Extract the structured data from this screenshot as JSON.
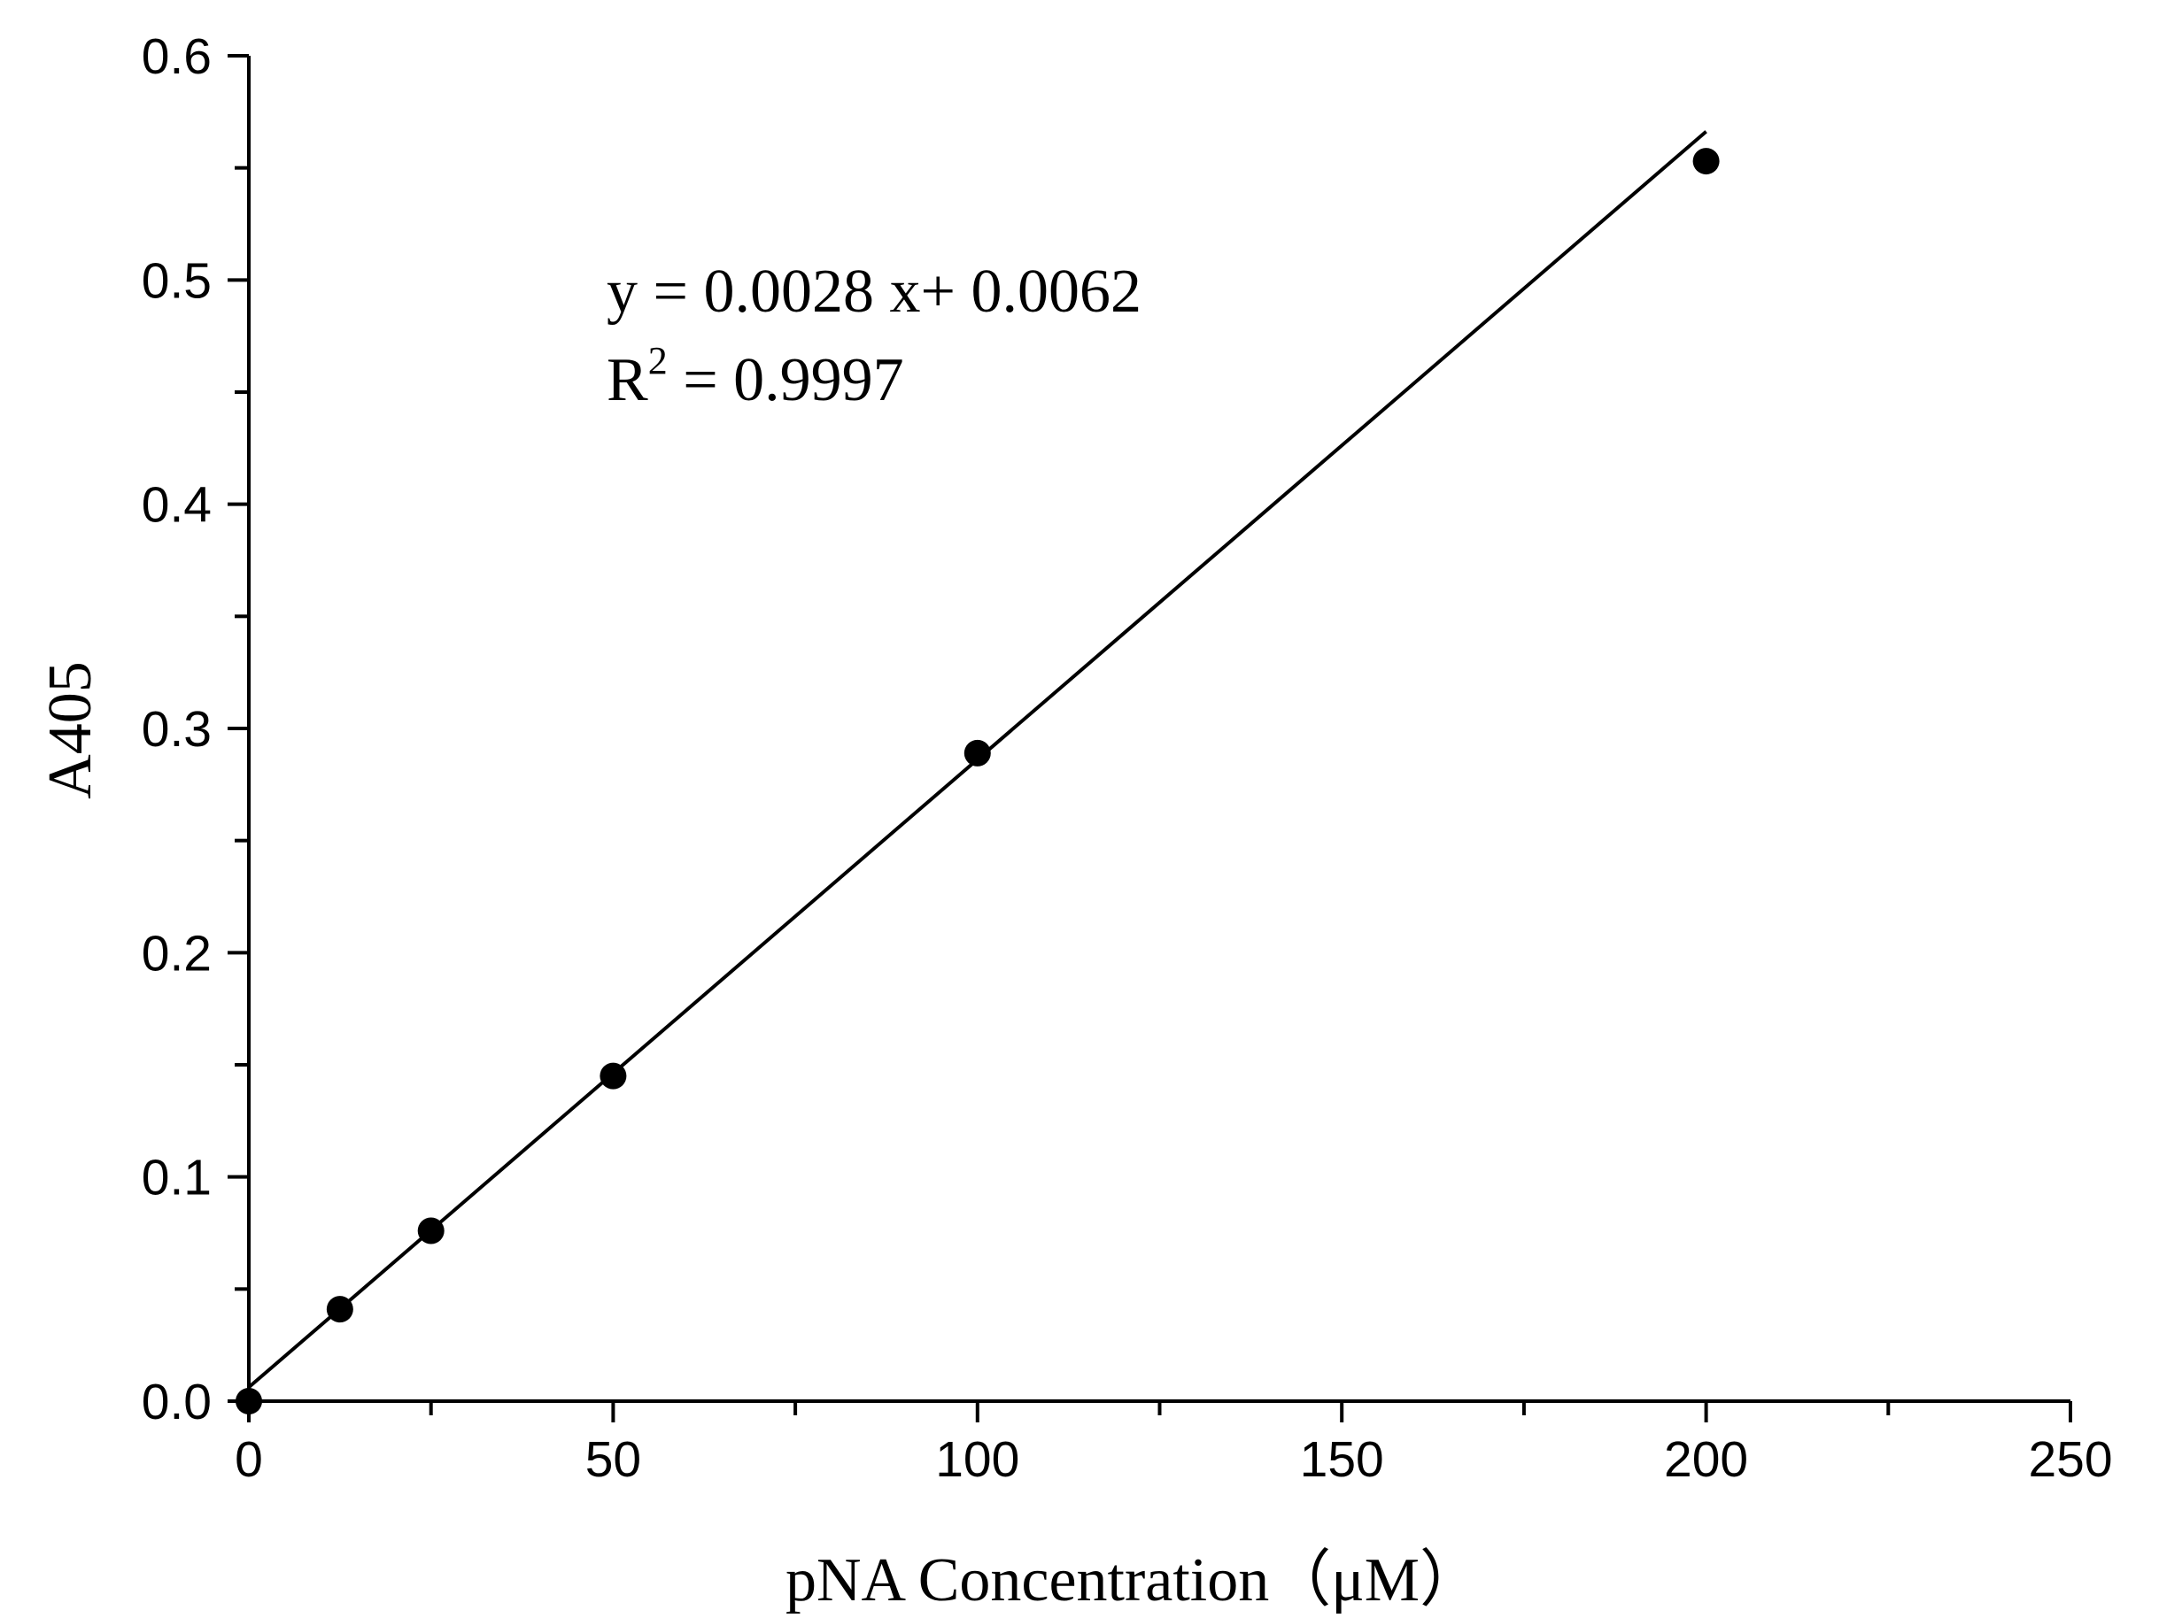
{
  "chart_data": {
    "type": "scatter",
    "title": "",
    "xlabel": "pNA Concentration（μM）",
    "ylabel": "A405",
    "xlim": [
      0,
      250
    ],
    "ylim": [
      0,
      0.6
    ],
    "x_ticks": [
      "0",
      "50",
      "100",
      "150",
      "200",
      "250"
    ],
    "y_ticks": [
      "0.0",
      "0.1",
      "0.2",
      "0.3",
      "0.4",
      "0.5",
      "0.6"
    ],
    "x_tick_values": [
      0,
      50,
      100,
      150,
      200,
      250
    ],
    "y_tick_values": [
      0,
      0.1,
      0.2,
      0.3,
      0.4,
      0.5,
      0.6
    ],
    "x_minor_step": 25,
    "y_minor_step": 0.05,
    "grid": false,
    "points": {
      "x": [
        0,
        12.5,
        25,
        50,
        100,
        200
      ],
      "y": [
        0.0,
        0.041,
        0.076,
        0.145,
        0.289,
        0.553
      ]
    },
    "fit": {
      "slope": 0.0028,
      "intercept": 0.0062,
      "equation_prefix": "y = 0.0028 x+ 0.0062",
      "r2_base": "R",
      "r2_exponent": "2",
      "r2_value": " = 0.9997"
    },
    "colors": {
      "marker": "#000000",
      "line": "#000000",
      "axis": "#000000"
    }
  }
}
